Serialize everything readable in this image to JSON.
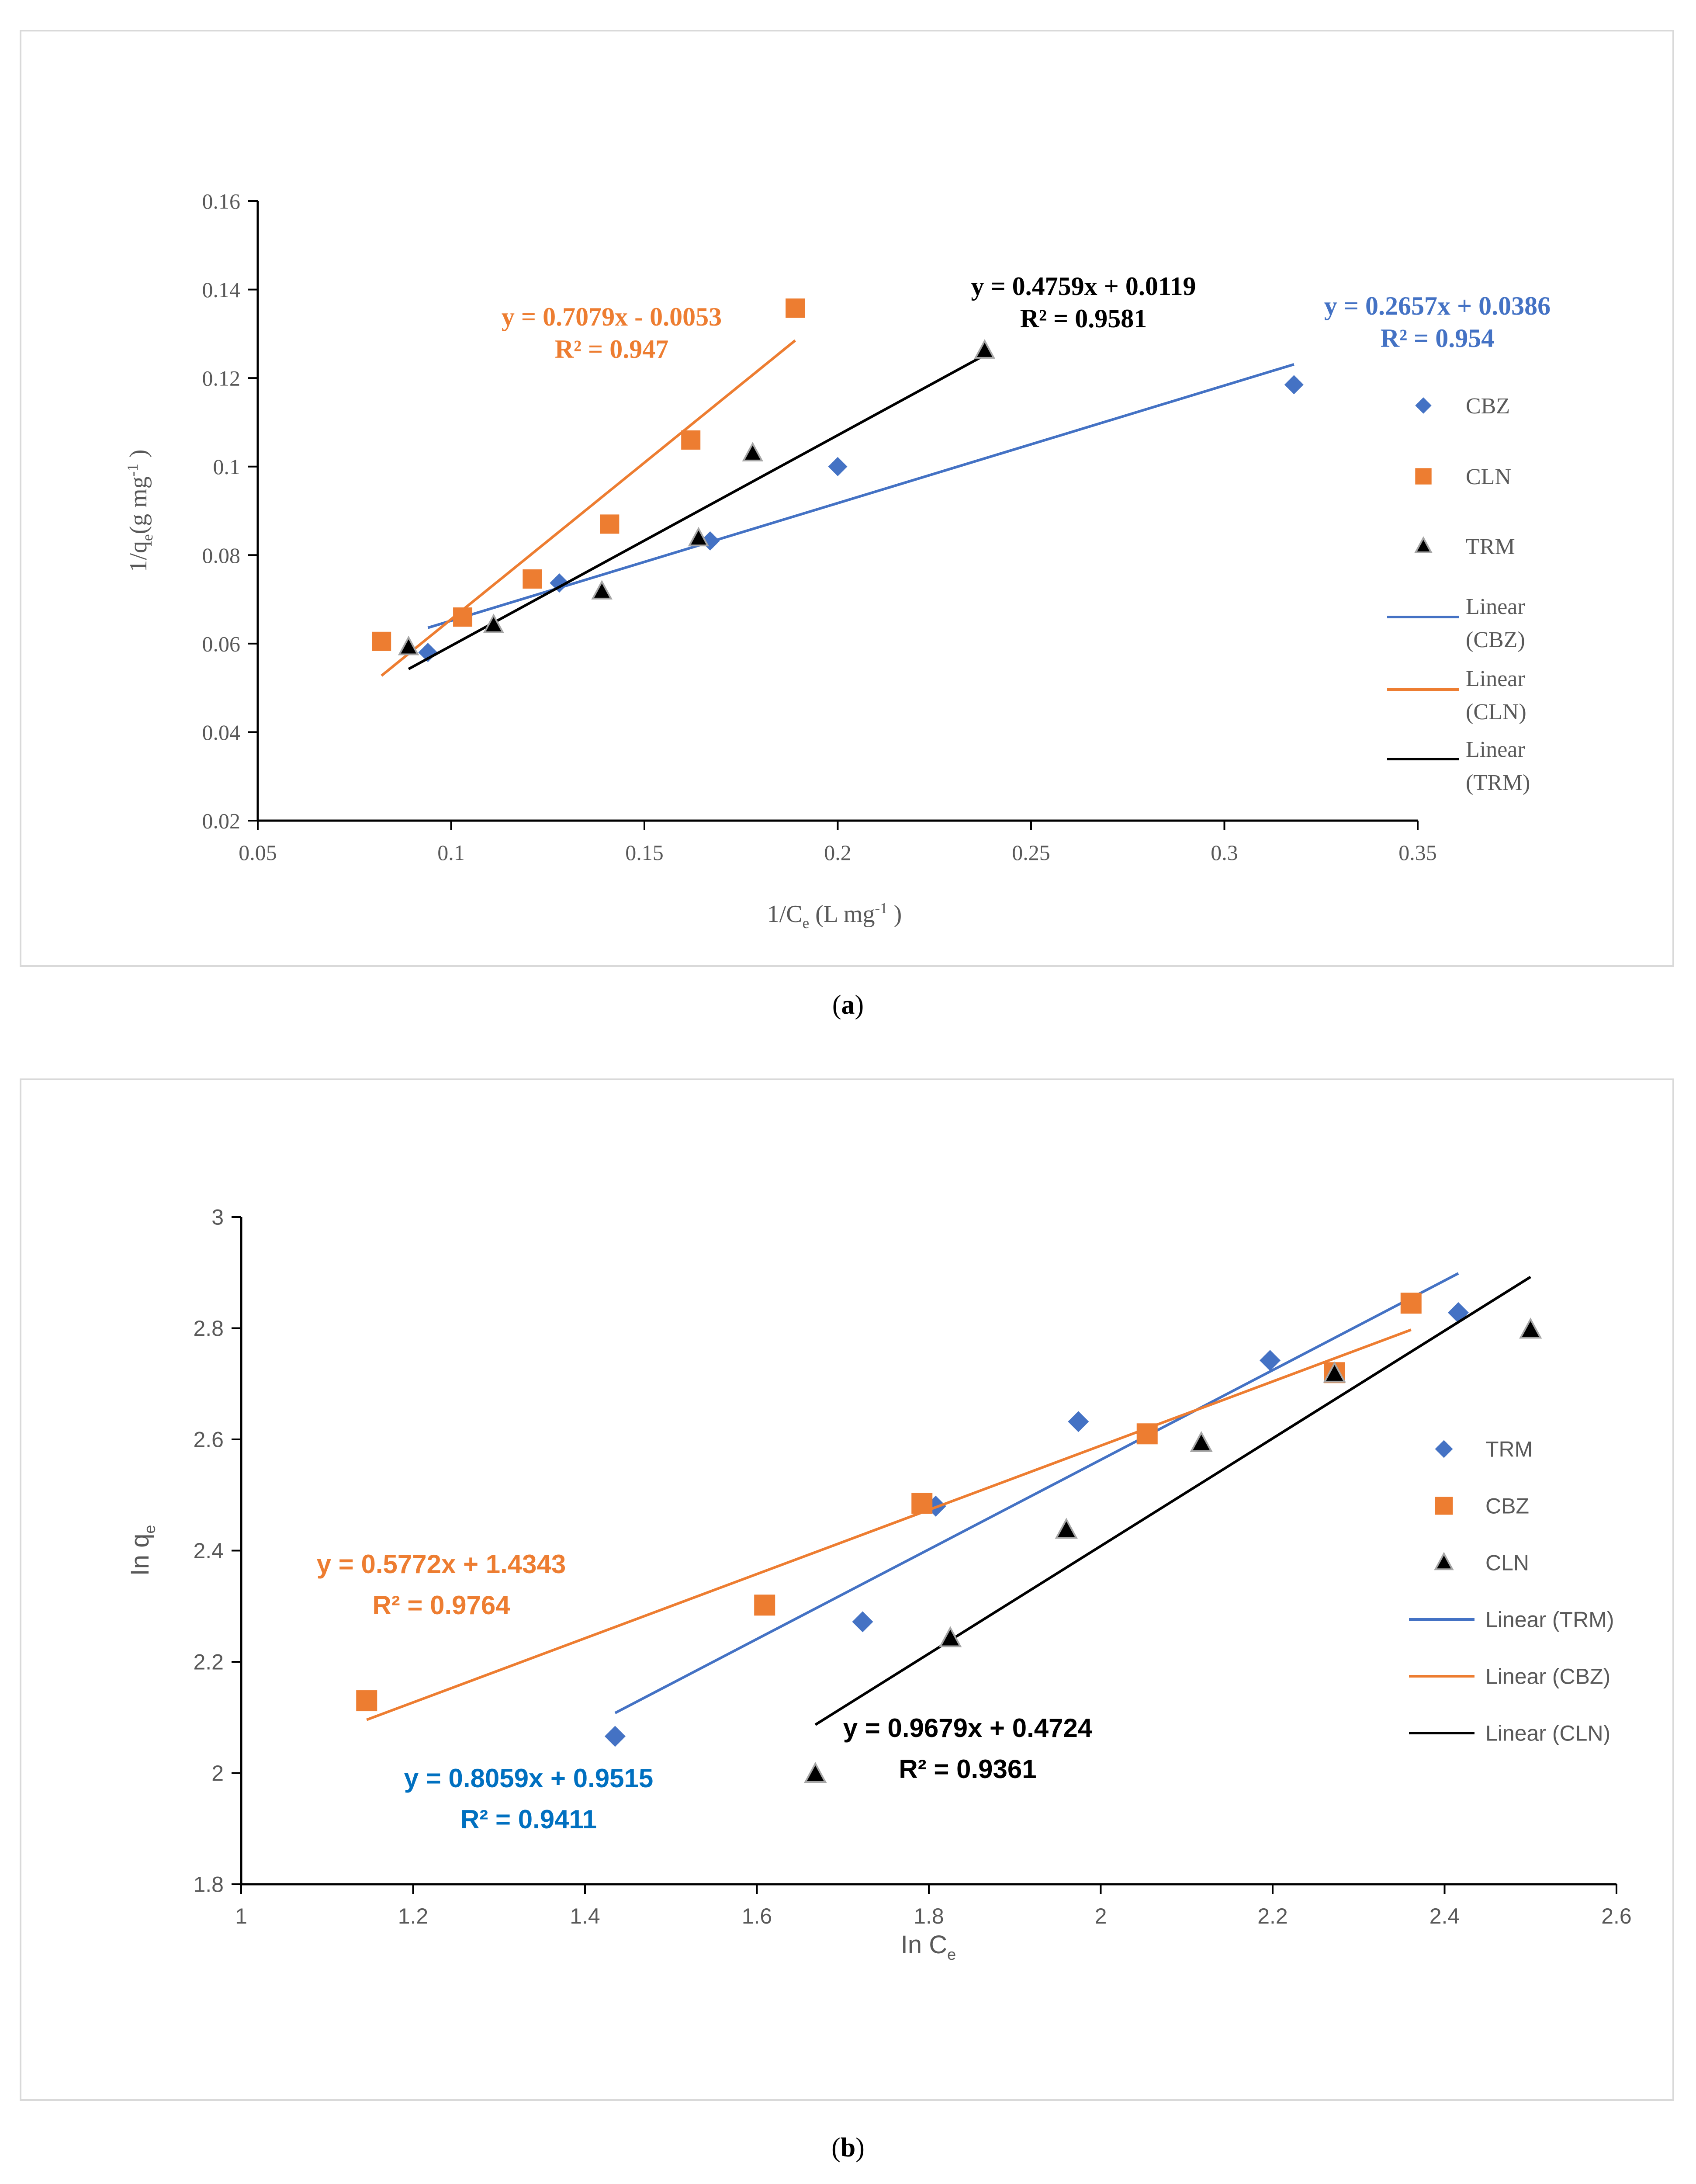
{
  "chart_data": [
    {
      "panel_label": "a",
      "type": "scatter",
      "title": "",
      "xlabel": {
        "base": "1/C",
        "sub": "e",
        "rest": " (L mg",
        "sup": "-1",
        "end": " )"
      },
      "ylabel": {
        "base": "1/q",
        "sub": "e",
        "rest": "(g mg",
        "sup": "-1",
        "end": " )"
      },
      "xlim": [
        0.05,
        0.35
      ],
      "ylim": [
        0.02,
        0.16
      ],
      "xticks": [
        "0.05",
        "0.1",
        "0.15",
        "0.2",
        "0.25",
        "0.3",
        "0.35"
      ],
      "yticks": [
        "0.02",
        "0.04",
        "0.06",
        "0.08",
        "0.1",
        "0.12",
        "0.14",
        "0.16"
      ],
      "grid": false,
      "legend_position": "right",
      "series": [
        {
          "name": "CBZ",
          "marker": "diamond",
          "color": "#4472C4",
          "x": [
            0.094,
            0.128,
            0.167,
            0.2,
            0.318
          ],
          "y": [
            0.058,
            0.0737,
            0.0832,
            0.1,
            0.1185
          ],
          "trend": {
            "legend": [
              "Linear",
              "(CBZ)"
            ],
            "slope": 0.2657,
            "intercept": 0.0386,
            "x_range": [
              0.094,
              0.318
            ],
            "eq_label": "y = 0.2657x + 0.0386",
            "r2_label": "R² = 0.954"
          }
        },
        {
          "name": "CLN",
          "marker": "square",
          "color": "#ED7D31",
          "x": [
            0.082,
            0.103,
            0.121,
            0.141,
            0.162,
            0.189
          ],
          "y": [
            0.0605,
            0.066,
            0.0746,
            0.087,
            0.106,
            0.1358
          ],
          "trend": {
            "legend": [
              "Linear",
              "(CLN)"
            ],
            "slope": 0.7079,
            "intercept": -0.0053,
            "x_range": [
              0.082,
              0.189
            ],
            "eq_label": "y = 0.7079x - 0.0053",
            "r2_label": "R² = 0.947"
          }
        },
        {
          "name": "TRM",
          "marker": "triangle",
          "color": "#000000",
          "x": [
            0.089,
            0.111,
            0.139,
            0.164,
            0.178,
            0.238
          ],
          "y": [
            0.0592,
            0.0642,
            0.0718,
            0.0838,
            0.103,
            0.1262
          ],
          "trend": {
            "legend": [
              "Linear",
              "(TRM)"
            ],
            "slope": 0.4759,
            "intercept": 0.0119,
            "x_range": [
              0.089,
              0.238
            ],
            "eq_label": "y = 0.4759x + 0.0119",
            "r2_label": "R² = 0.9581"
          }
        }
      ]
    },
    {
      "panel_label": "b",
      "type": "scatter",
      "title": "",
      "xlabel": {
        "base": "In C",
        "sub": "e",
        "rest": "",
        "sup": "",
        "end": ""
      },
      "ylabel": {
        "base": "In q",
        "sub": "e",
        "rest": "",
        "sup": "",
        "end": ""
      },
      "xlim": [
        1.0,
        2.6
      ],
      "ylim": [
        1.8,
        3.0
      ],
      "xticks": [
        "1",
        "1.2",
        "1.4",
        "1.6",
        "1.8",
        "2",
        "2.2",
        "2.4",
        "2.6"
      ],
      "yticks": [
        "1.8",
        "2",
        "2.2",
        "2.4",
        "2.6",
        "2.8",
        "3"
      ],
      "grid": false,
      "legend_position": "right",
      "series": [
        {
          "name": "TRM",
          "marker": "diamond",
          "color": "#4472C4",
          "x": [
            1.435,
            1.723,
            1.808,
            1.974,
            2.197,
            2.416
          ],
          "y": [
            2.066,
            2.272,
            2.48,
            2.632,
            2.742,
            2.828
          ],
          "trend": {
            "legend": [
              "Linear (TRM)"
            ],
            "slope": 0.8059,
            "intercept": 0.9515,
            "x_range": [
              1.435,
              2.416
            ],
            "eq_label": "y = 0.8059x + 0.9515",
            "r2_label": "R² = 0.9411"
          }
        },
        {
          "name": "CBZ",
          "marker": "square",
          "color": "#ED7D31",
          "x": [
            1.146,
            1.609,
            1.792,
            2.054,
            2.272,
            2.361
          ],
          "y": [
            2.13,
            2.302,
            2.485,
            2.61,
            2.72,
            2.845
          ],
          "trend": {
            "legend": [
              "Linear (CBZ)"
            ],
            "slope": 0.5772,
            "intercept": 1.4343,
            "x_range": [
              1.146,
              2.361
            ],
            "eq_label": "y = 0.5772x + 1.4343",
            "r2_label": "R² = 0.9764"
          }
        },
        {
          "name": "CLN",
          "marker": "triangle",
          "color": "#000000",
          "x": [
            1.668,
            1.825,
            1.96,
            2.117,
            2.272,
            2.5
          ],
          "y": [
            1.998,
            2.242,
            2.437,
            2.593,
            2.718,
            2.797
          ],
          "trend": {
            "legend": [
              "Linear (CLN)"
            ],
            "slope": 0.9679,
            "intercept": 0.4724,
            "x_range": [
              1.668,
              2.5
            ],
            "eq_label": "y = 0.9679x + 0.4724",
            "r2_label": "R² = 0.9361"
          }
        }
      ]
    }
  ]
}
